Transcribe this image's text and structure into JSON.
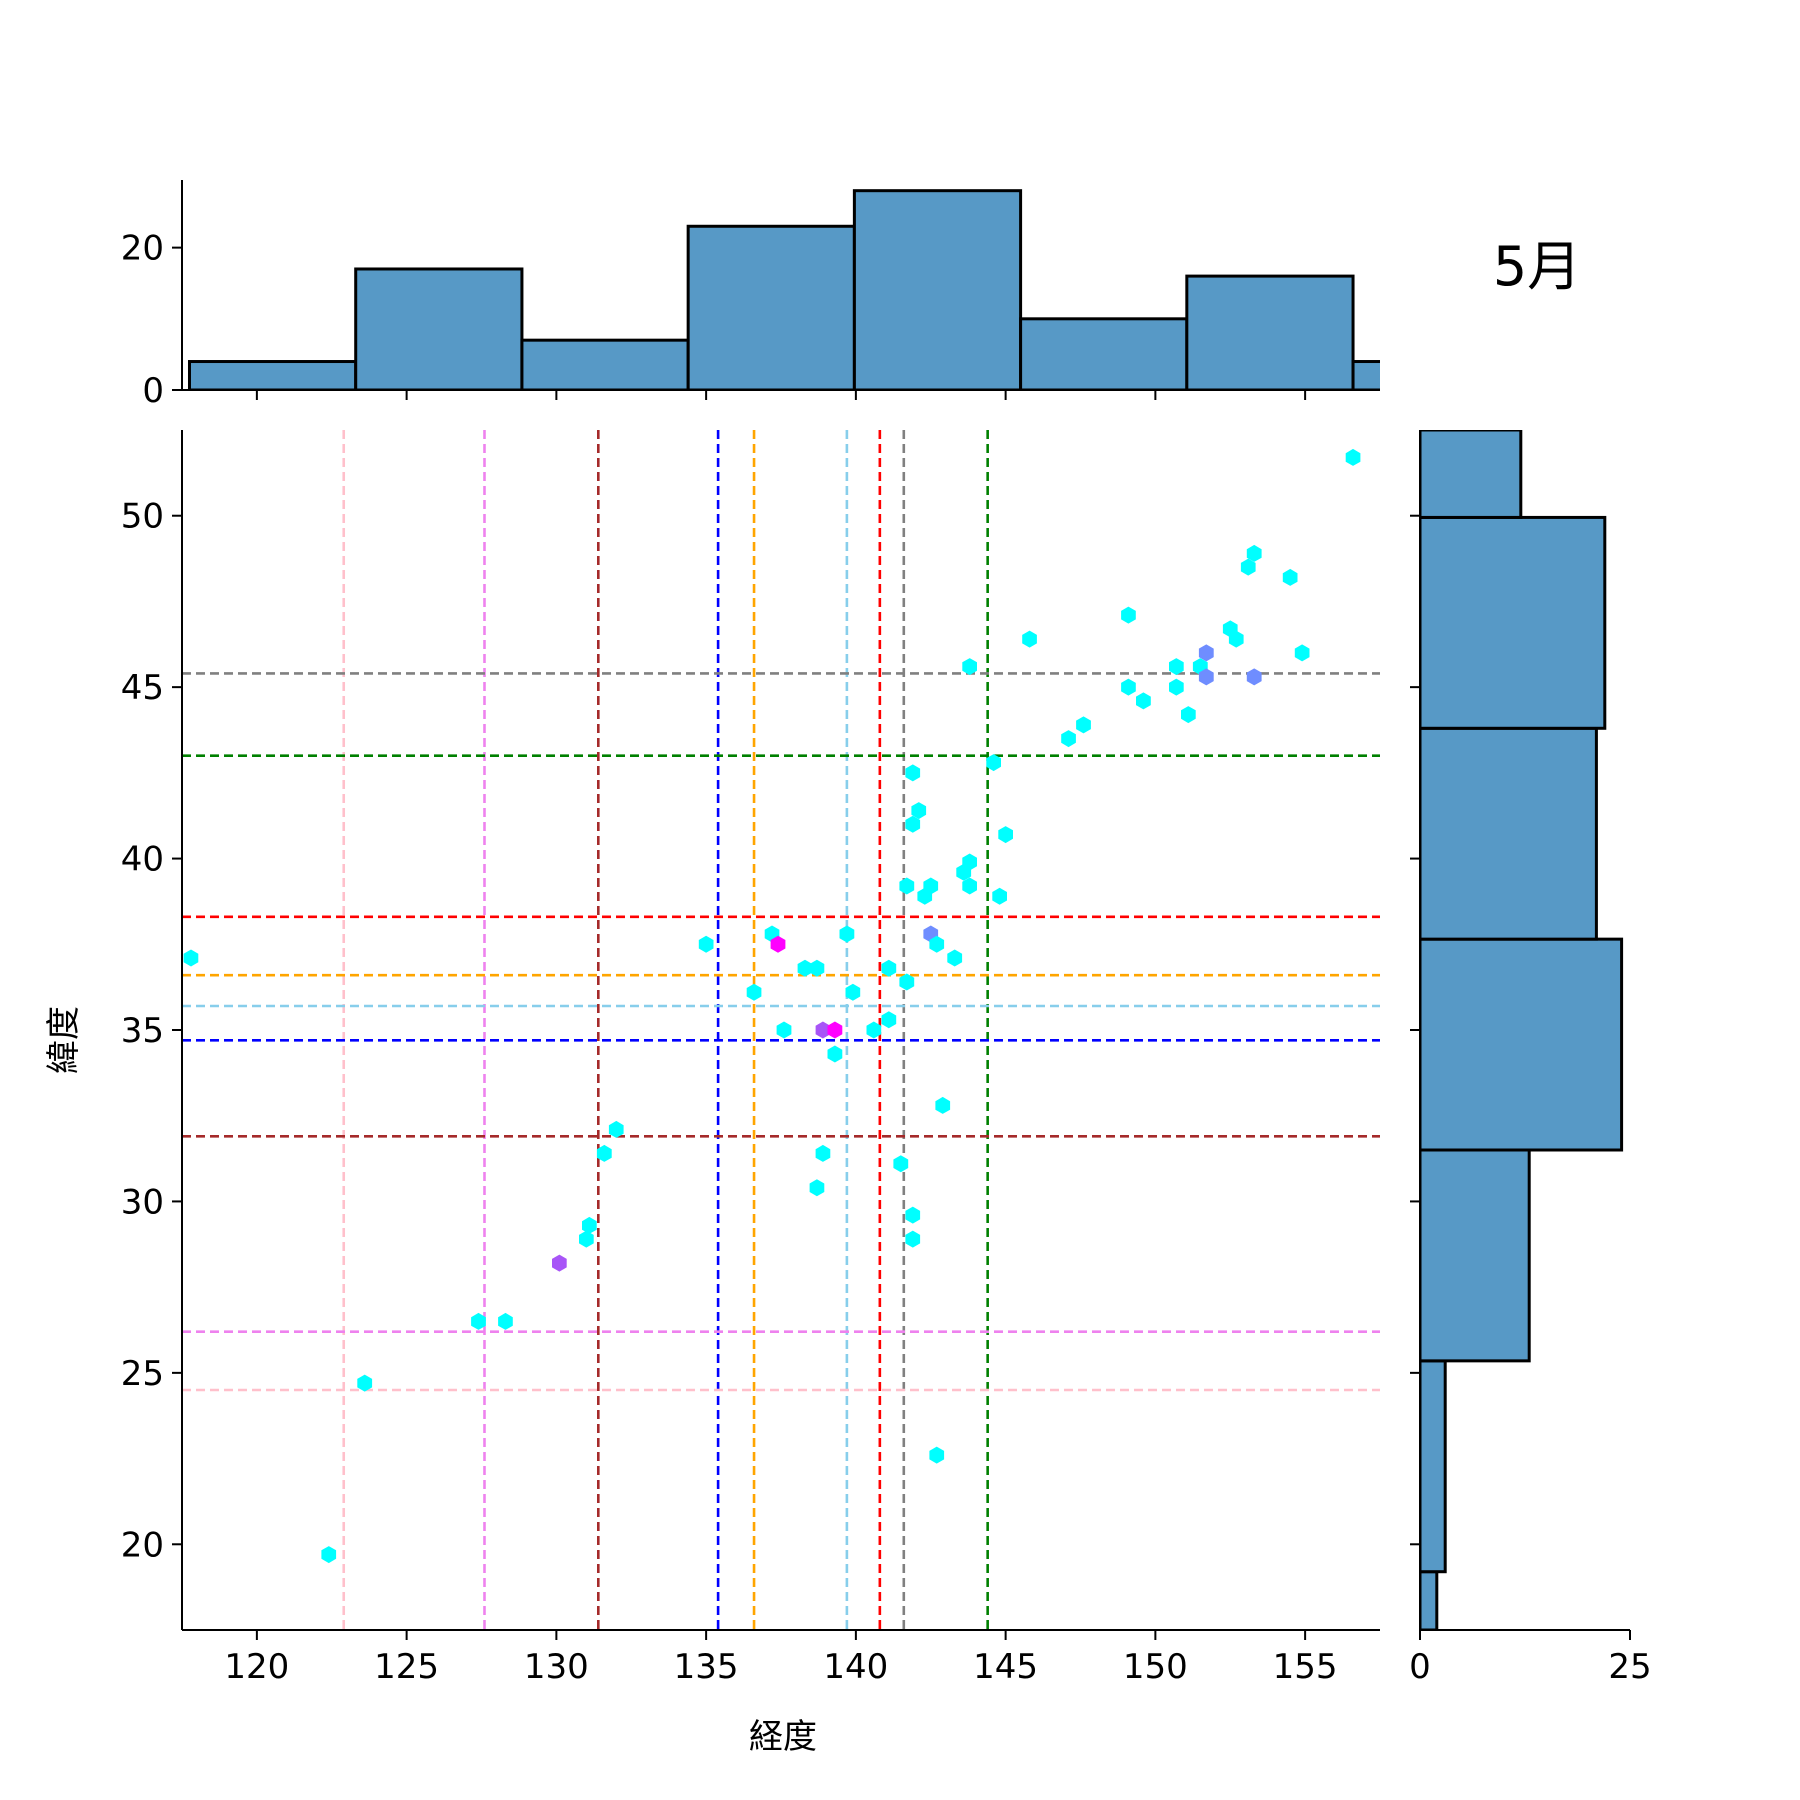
{
  "chart_data": {
    "type": "scatter",
    "title": "5月",
    "xlabel": "経度",
    "ylabel": "緯度",
    "xlim": [
      117.5,
      157.5
    ],
    "ylim": [
      17.5,
      52.5
    ],
    "x_ticks": [
      120,
      125,
      130,
      135,
      140,
      145,
      150,
      155
    ],
    "y_ticks": [
      20,
      25,
      30,
      35,
      40,
      45,
      50
    ],
    "grid": false,
    "points": [
      {
        "x": 117.8,
        "y": 37.1,
        "color": "#00ffff"
      },
      {
        "x": 122.4,
        "y": 19.7,
        "color": "#00ffff"
      },
      {
        "x": 123.6,
        "y": 24.7,
        "color": "#00ffff"
      },
      {
        "x": 127.4,
        "y": 26.5,
        "color": "#00ffff"
      },
      {
        "x": 128.3,
        "y": 26.5,
        "color": "#00ffff"
      },
      {
        "x": 130.1,
        "y": 28.2,
        "color": "#a855f7"
      },
      {
        "x": 131.0,
        "y": 28.9,
        "color": "#00ffff"
      },
      {
        "x": 131.1,
        "y": 29.3,
        "color": "#00ffff"
      },
      {
        "x": 131.6,
        "y": 31.4,
        "color": "#00ffff"
      },
      {
        "x": 132.0,
        "y": 32.1,
        "color": "#00ffff"
      },
      {
        "x": 135.0,
        "y": 37.5,
        "color": "#00ffff"
      },
      {
        "x": 136.6,
        "y": 36.1,
        "color": "#00ffff"
      },
      {
        "x": 137.2,
        "y": 37.8,
        "color": "#00ffff"
      },
      {
        "x": 137.4,
        "y": 37.5,
        "color": "#ff00ff"
      },
      {
        "x": 137.6,
        "y": 35.0,
        "color": "#00ffff"
      },
      {
        "x": 138.3,
        "y": 36.8,
        "color": "#00ffff"
      },
      {
        "x": 138.7,
        "y": 36.8,
        "color": "#00ffff"
      },
      {
        "x": 138.7,
        "y": 30.4,
        "color": "#00ffff"
      },
      {
        "x": 138.9,
        "y": 31.4,
        "color": "#00ffff"
      },
      {
        "x": 138.9,
        "y": 35.0,
        "color": "#a855f7"
      },
      {
        "x": 139.3,
        "y": 35.0,
        "color": "#ff00ff"
      },
      {
        "x": 139.3,
        "y": 34.3,
        "color": "#00ffff"
      },
      {
        "x": 139.7,
        "y": 37.8,
        "color": "#00ffff"
      },
      {
        "x": 139.9,
        "y": 36.1,
        "color": "#00ffff"
      },
      {
        "x": 140.6,
        "y": 35.0,
        "color": "#00ffff"
      },
      {
        "x": 141.1,
        "y": 35.3,
        "color": "#00ffff"
      },
      {
        "x": 141.1,
        "y": 36.8,
        "color": "#00ffff"
      },
      {
        "x": 141.5,
        "y": 31.1,
        "color": "#00ffff"
      },
      {
        "x": 141.7,
        "y": 36.4,
        "color": "#00ffff"
      },
      {
        "x": 141.7,
        "y": 39.2,
        "color": "#00ffff"
      },
      {
        "x": 141.9,
        "y": 29.6,
        "color": "#00ffff"
      },
      {
        "x": 141.9,
        "y": 28.9,
        "color": "#00ffff"
      },
      {
        "x": 141.9,
        "y": 41.0,
        "color": "#00ffff"
      },
      {
        "x": 141.9,
        "y": 42.5,
        "color": "#00ffff"
      },
      {
        "x": 142.1,
        "y": 41.4,
        "color": "#00ffff"
      },
      {
        "x": 142.3,
        "y": 38.9,
        "color": "#00ffff"
      },
      {
        "x": 142.5,
        "y": 39.2,
        "color": "#00ffff"
      },
      {
        "x": 142.5,
        "y": 37.8,
        "color": "#6f8dff"
      },
      {
        "x": 142.7,
        "y": 37.5,
        "color": "#00ffff"
      },
      {
        "x": 142.7,
        "y": 22.6,
        "color": "#00ffff"
      },
      {
        "x": 142.9,
        "y": 32.8,
        "color": "#00ffff"
      },
      {
        "x": 143.3,
        "y": 37.1,
        "color": "#00ffff"
      },
      {
        "x": 143.6,
        "y": 39.6,
        "color": "#00ffff"
      },
      {
        "x": 143.8,
        "y": 39.9,
        "color": "#00ffff"
      },
      {
        "x": 143.8,
        "y": 39.2,
        "color": "#00ffff"
      },
      {
        "x": 143.8,
        "y": 45.6,
        "color": "#00ffff"
      },
      {
        "x": 144.6,
        "y": 42.8,
        "color": "#00ffff"
      },
      {
        "x": 144.8,
        "y": 38.9,
        "color": "#00ffff"
      },
      {
        "x": 145.0,
        "y": 40.7,
        "color": "#00ffff"
      },
      {
        "x": 145.8,
        "y": 46.4,
        "color": "#00ffff"
      },
      {
        "x": 147.1,
        "y": 43.5,
        "color": "#00ffff"
      },
      {
        "x": 147.6,
        "y": 43.9,
        "color": "#00ffff"
      },
      {
        "x": 149.1,
        "y": 45.0,
        "color": "#00ffff"
      },
      {
        "x": 149.1,
        "y": 47.1,
        "color": "#00ffff"
      },
      {
        "x": 149.6,
        "y": 44.6,
        "color": "#00ffff"
      },
      {
        "x": 150.7,
        "y": 45.0,
        "color": "#00ffff"
      },
      {
        "x": 150.7,
        "y": 45.6,
        "color": "#00ffff"
      },
      {
        "x": 151.1,
        "y": 44.2,
        "color": "#00ffff"
      },
      {
        "x": 151.5,
        "y": 45.6,
        "color": "#00ffff"
      },
      {
        "x": 151.7,
        "y": 46.0,
        "color": "#6f8dff"
      },
      {
        "x": 151.7,
        "y": 45.3,
        "color": "#6f8dff"
      },
      {
        "x": 152.5,
        "y": 46.7,
        "color": "#00ffff"
      },
      {
        "x": 152.7,
        "y": 46.4,
        "color": "#00ffff"
      },
      {
        "x": 153.1,
        "y": 48.5,
        "color": "#00ffff"
      },
      {
        "x": 153.3,
        "y": 48.9,
        "color": "#00ffff"
      },
      {
        "x": 153.3,
        "y": 45.3,
        "color": "#6f8dff"
      },
      {
        "x": 154.5,
        "y": 48.2,
        "color": "#00ffff"
      },
      {
        "x": 154.9,
        "y": 46.0,
        "color": "#00ffff"
      },
      {
        "x": 156.6,
        "y": 51.7,
        "color": "#00ffff"
      }
    ],
    "vlines": [
      {
        "x": 122.9,
        "color": "#ffc0cb"
      },
      {
        "x": 127.6,
        "color": "#ee82ee"
      },
      {
        "x": 131.4,
        "color": "#a52a2a"
      },
      {
        "x": 135.4,
        "color": "#0000ff"
      },
      {
        "x": 136.6,
        "color": "#ffa500"
      },
      {
        "x": 139.7,
        "color": "#87ceeb"
      },
      {
        "x": 140.8,
        "color": "#ff0000"
      },
      {
        "x": 141.6,
        "color": "#808080"
      },
      {
        "x": 144.4,
        "color": "#008000"
      }
    ],
    "hlines": [
      {
        "y": 45.4,
        "color": "#808080"
      },
      {
        "y": 43.0,
        "color": "#008000"
      },
      {
        "y": 38.3,
        "color": "#ff0000"
      },
      {
        "y": 36.6,
        "color": "#ffa500"
      },
      {
        "y": 35.7,
        "color": "#87ceeb"
      },
      {
        "y": 34.7,
        "color": "#0000ff"
      },
      {
        "y": 31.9,
        "color": "#a52a2a"
      },
      {
        "y": 26.2,
        "color": "#ee82ee"
      },
      {
        "y": 24.5,
        "color": "#ffc0cb"
      }
    ],
    "x_histogram": {
      "ylim": [
        0,
        29.5
      ],
      "y_ticks": [
        0,
        20
      ],
      "bins": [
        {
          "start": 117.75,
          "end": 123.3,
          "count": 4
        },
        {
          "start": 123.3,
          "end": 128.85,
          "count": 17
        },
        {
          "start": 128.85,
          "end": 134.4,
          "count": 7
        },
        {
          "start": 134.4,
          "end": 139.95,
          "count": 23
        },
        {
          "start": 139.95,
          "end": 145.5,
          "count": 28
        },
        {
          "start": 145.5,
          "end": 151.05,
          "count": 10
        },
        {
          "start": 151.05,
          "end": 156.6,
          "count": 16
        },
        {
          "start": 156.6,
          "end": 162.15,
          "count": 4
        }
      ]
    },
    "y_histogram": {
      "xlim": [
        0,
        25
      ],
      "x_ticks": [
        0,
        25
      ],
      "bins": [
        {
          "start": 17.5,
          "end": 19.2,
          "count": 2
        },
        {
          "start": 19.2,
          "end": 25.35,
          "count": 3
        },
        {
          "start": 25.35,
          "end": 31.5,
          "count": 13
        },
        {
          "start": 31.5,
          "end": 37.65,
          "count": 24
        },
        {
          "start": 37.65,
          "end": 43.8,
          "count": 21
        },
        {
          "start": 43.8,
          "end": 49.95,
          "count": 22
        },
        {
          "start": 49.95,
          "end": 52.5,
          "count": 12
        }
      ]
    },
    "bar_color": "#5799c6"
  }
}
